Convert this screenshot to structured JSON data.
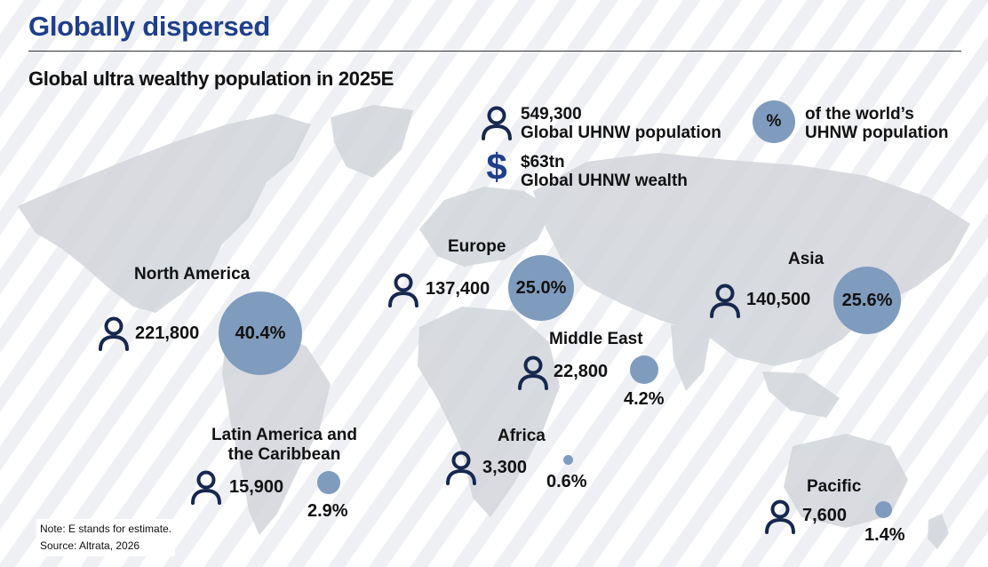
{
  "header": {
    "title": "Globally dispersed",
    "subtitle": "Global ultra wealthy population  in 2025E"
  },
  "legend": {
    "population_value": "549,300",
    "population_label": "Global UHNW population",
    "wealth_value": "$63tn",
    "wealth_label": "Global UHNW wealth",
    "dollar_symbol": "$",
    "pct_symbol": "%",
    "pct_label_line1": "of the world’s",
    "pct_label_line2": "UHNW population",
    "person_icon": "person-icon",
    "dollar_icon": "dollar-icon"
  },
  "colors": {
    "title_blue": "#1f3f8c",
    "icon_navy": "#17284f",
    "circle_fill": "#7f9bbd",
    "map_gray": "#d2d5da"
  },
  "regions": [
    {
      "id": "north-america",
      "name": "North America",
      "count": "221,800",
      "pct": "40.4%",
      "share": 40.4
    },
    {
      "id": "europe",
      "name": "Europe",
      "count": "137,400",
      "pct": "25.0%",
      "share": 25.0
    },
    {
      "id": "asia",
      "name": "Asia",
      "count": "140,500",
      "pct": "25.6%",
      "share": 25.6
    },
    {
      "id": "middle-east",
      "name": "Middle East",
      "count": "22,800",
      "pct": "4.2%",
      "share": 4.2
    },
    {
      "id": "latin-america",
      "name_line1": "Latin America and",
      "name_line2": "the Caribbean",
      "count": "15,900",
      "pct": "2.9%",
      "share": 2.9
    },
    {
      "id": "africa",
      "name": "Africa",
      "count": "3,300",
      "pct": "0.6%",
      "share": 0.6
    },
    {
      "id": "pacific",
      "name": "Pacific",
      "count": "7,600",
      "pct": "1.4%",
      "share": 1.4
    }
  ],
  "footer": {
    "note": "Note: E stands for estimate.",
    "source": "Source: Altrata, 2026"
  }
}
